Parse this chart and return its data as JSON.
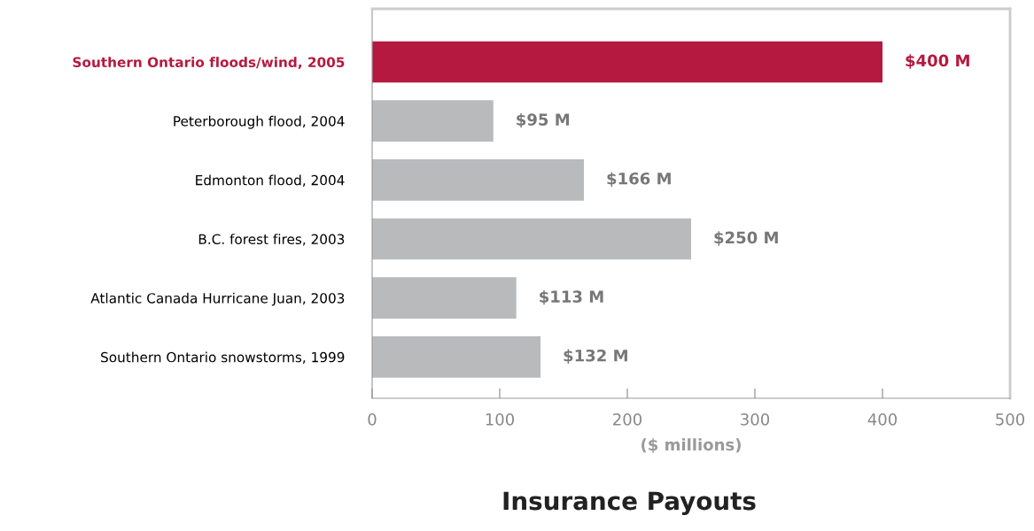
{
  "chart_data": {
    "type": "bar",
    "orientation": "horizontal",
    "title": "Insurance Payouts",
    "xlabel": "($ millions)",
    "categories": [
      "Southern Ontario floods/wind, 2005",
      "Peterborough flood, 2004",
      "Edmonton flood, 2004",
      "B.C. forest fires, 2003",
      "Atlantic Canada Hurricane Juan, 2003",
      "Southern Ontario snowstorms, 1999"
    ],
    "values": [
      400,
      95,
      166,
      250,
      113,
      132
    ],
    "colors": [
      "#b5193f",
      "#b9babc",
      "#b9babc",
      "#b9babc",
      "#b9babc",
      "#b9babc"
    ],
    "value_labels": [
      "$400 M",
      "$95 M",
      "$166 M",
      "$250 M",
      "$113 M",
      "$132 M"
    ],
    "xlim": [
      0,
      500
    ],
    "xticks": [
      0,
      100,
      200,
      300,
      400,
      500
    ],
    "grid": false,
    "legend": false
  }
}
